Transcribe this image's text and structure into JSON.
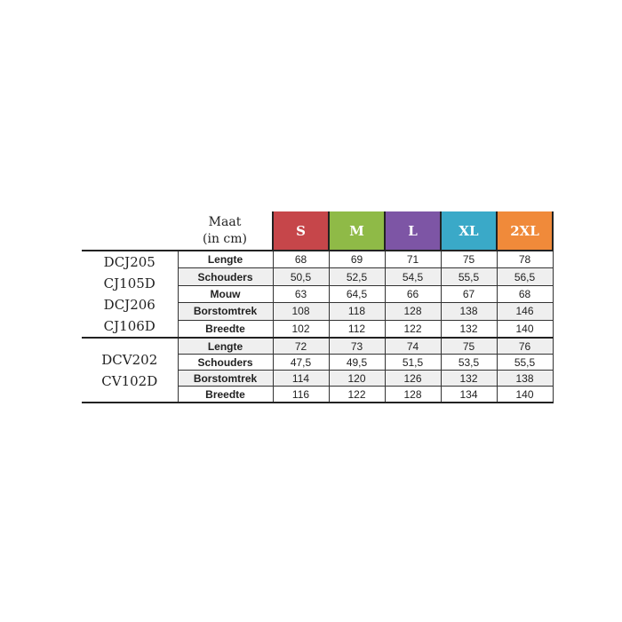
{
  "header": {
    "maat_line1": "Maat",
    "maat_line2": "(in cm)",
    "sizes": [
      {
        "label": "S",
        "color": "#c6464a"
      },
      {
        "label": "M",
        "color": "#8fba47"
      },
      {
        "label": "L",
        "color": "#7d55a5"
      },
      {
        "label": "XL",
        "color": "#3aa9c8"
      },
      {
        "label": "2XL",
        "color": "#f08a3a"
      }
    ]
  },
  "groups": [
    {
      "models": [
        "DCJ205",
        "CJ105D",
        "DCJ206",
        "CJ106D"
      ],
      "rows": [
        {
          "label": "Lengte",
          "values": [
            "68",
            "69",
            "71",
            "75",
            "78"
          ]
        },
        {
          "label": "Schouders",
          "values": [
            "50,5",
            "52,5",
            "54,5",
            "55,5",
            "56,5"
          ]
        },
        {
          "label": "Mouw",
          "values": [
            "63",
            "64,5",
            "66",
            "67",
            "68"
          ]
        },
        {
          "label": "Borstomtrek",
          "values": [
            "108",
            "118",
            "128",
            "138",
            "146"
          ]
        },
        {
          "label": "Breedte",
          "values": [
            "102",
            "112",
            "122",
            "132",
            "140"
          ]
        }
      ]
    },
    {
      "models": [
        "DCV202",
        "CV102D"
      ],
      "rows": [
        {
          "label": "Lengte",
          "values": [
            "72",
            "73",
            "74",
            "75",
            "76"
          ]
        },
        {
          "label": "Schouders",
          "values": [
            "47,5",
            "49,5",
            "51,5",
            "53,5",
            "55,5"
          ]
        },
        {
          "label": "Borstomtrek",
          "values": [
            "114",
            "120",
            "126",
            "132",
            "138"
          ]
        },
        {
          "label": "Breedte",
          "values": [
            "116",
            "122",
            "128",
            "134",
            "140"
          ]
        }
      ]
    }
  ]
}
